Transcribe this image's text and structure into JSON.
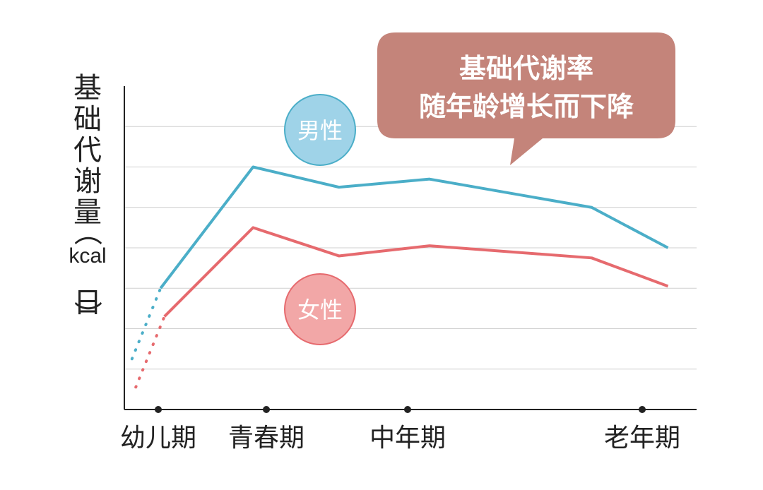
{
  "chart_data": {
    "type": "line",
    "categories": [
      "幼儿期",
      "青春期",
      "中年期",
      "老年期"
    ],
    "ylabel_chars": [
      "基",
      "础",
      "代",
      "谢",
      "量",
      "（"
    ],
    "ylabel_unit": "kcal",
    "ylabel_tail_chars": [
      "日",
      "）"
    ],
    "yticks_shown": false,
    "grid": true,
    "series": [
      {
        "name": "男性",
        "color": "#4baec8",
        "points": [
          [
            0.38,
            3.0
          ],
          [
            1.35,
            6.0
          ],
          [
            2.25,
            5.5
          ],
          [
            3.2,
            5.7
          ],
          [
            4.9,
            5.0
          ],
          [
            5.7,
            4.0
          ]
        ],
        "dotted_until_x": 0.38
      },
      {
        "name": "女性",
        "color": "#e66a6e",
        "points": [
          [
            0.42,
            2.3
          ],
          [
            1.35,
            4.5
          ],
          [
            2.25,
            3.8
          ],
          [
            3.2,
            4.05
          ],
          [
            4.9,
            3.75
          ],
          [
            5.7,
            3.05
          ]
        ],
        "dotted_until_x": 0.42
      }
    ],
    "annotation": [
      "基础代谢率",
      "随年龄增长而下降"
    ],
    "annotation_color": "#c4847a"
  }
}
